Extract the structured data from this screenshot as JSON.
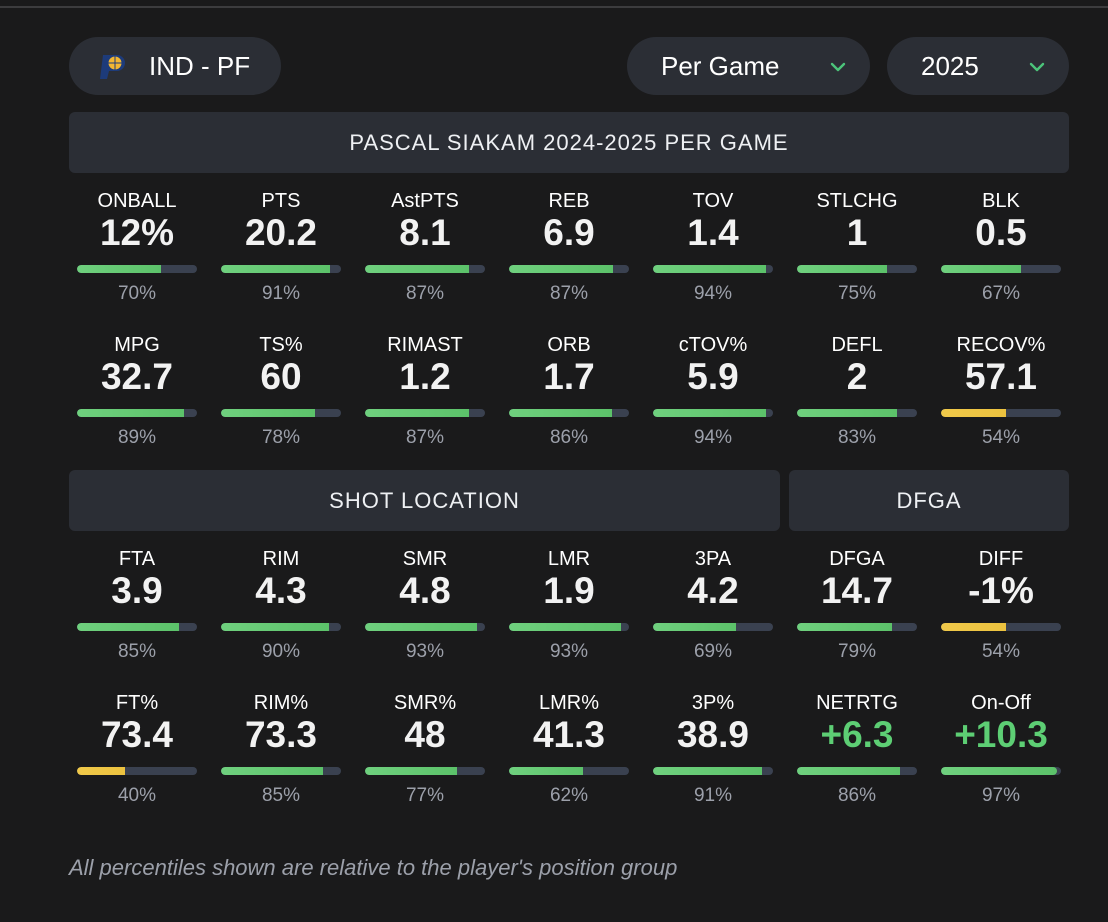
{
  "header": {
    "team_label": "IND - PF",
    "team_logo": "pacers-logo",
    "stat_mode": "Per Game",
    "season": "2025"
  },
  "sections": {
    "main_title": "PASCAL SIAKAM 2024-2025 PER GAME",
    "shot_location": "SHOT LOCATION",
    "dfga": "DFGA"
  },
  "colors": {
    "green": "#5cc26a",
    "yellow": "#ecc23f",
    "track": "#3a4150",
    "positive": "#5dce74"
  },
  "main_stats": [
    {
      "label": "ONBALL",
      "value": "12%",
      "pct": "70%",
      "p": 70,
      "color": "green"
    },
    {
      "label": "PTS",
      "value": "20.2",
      "pct": "91%",
      "p": 91,
      "color": "green"
    },
    {
      "label": "AstPTS",
      "value": "8.1",
      "pct": "87%",
      "p": 87,
      "color": "green"
    },
    {
      "label": "REB",
      "value": "6.9",
      "pct": "87%",
      "p": 87,
      "color": "green"
    },
    {
      "label": "TOV",
      "value": "1.4",
      "pct": "94%",
      "p": 94,
      "color": "green"
    },
    {
      "label": "STLCHG",
      "value": "1",
      "pct": "75%",
      "p": 75,
      "color": "green"
    },
    {
      "label": "BLK",
      "value": "0.5",
      "pct": "67%",
      "p": 67,
      "color": "green"
    },
    {
      "label": "MPG",
      "value": "32.7",
      "pct": "89%",
      "p": 89,
      "color": "green"
    },
    {
      "label": "TS%",
      "value": "60",
      "pct": "78%",
      "p": 78,
      "color": "green"
    },
    {
      "label": "RIMAST",
      "value": "1.2",
      "pct": "87%",
      "p": 87,
      "color": "green"
    },
    {
      "label": "ORB",
      "value": "1.7",
      "pct": "86%",
      "p": 86,
      "color": "green"
    },
    {
      "label": "cTOV%",
      "value": "5.9",
      "pct": "94%",
      "p": 94,
      "color": "green"
    },
    {
      "label": "DEFL",
      "value": "2",
      "pct": "83%",
      "p": 83,
      "color": "green"
    },
    {
      "label": "RECOV%",
      "value": "57.1",
      "pct": "54%",
      "p": 54,
      "color": "yellow"
    }
  ],
  "shot_stats": [
    {
      "label": "FTA",
      "value": "3.9",
      "pct": "85%",
      "p": 85,
      "color": "green"
    },
    {
      "label": "RIM",
      "value": "4.3",
      "pct": "90%",
      "p": 90,
      "color": "green"
    },
    {
      "label": "SMR",
      "value": "4.8",
      "pct": "93%",
      "p": 93,
      "color": "green"
    },
    {
      "label": "LMR",
      "value": "1.9",
      "pct": "93%",
      "p": 93,
      "color": "green"
    },
    {
      "label": "3PA",
      "value": "4.2",
      "pct": "69%",
      "p": 69,
      "color": "green"
    },
    {
      "label": "DFGA",
      "value": "14.7",
      "pct": "79%",
      "p": 79,
      "color": "green"
    },
    {
      "label": "DIFF",
      "value": "-1%",
      "pct": "54%",
      "p": 54,
      "color": "yellow"
    },
    {
      "label": "FT%",
      "value": "73.4",
      "pct": "40%",
      "p": 40,
      "color": "yellow"
    },
    {
      "label": "RIM%",
      "value": "73.3",
      "pct": "85%",
      "p": 85,
      "color": "green"
    },
    {
      "label": "SMR%",
      "value": "48",
      "pct": "77%",
      "p": 77,
      "color": "green"
    },
    {
      "label": "LMR%",
      "value": "41.3",
      "pct": "62%",
      "p": 62,
      "color": "green"
    },
    {
      "label": "3P%",
      "value": "38.9",
      "pct": "91%",
      "p": 91,
      "color": "green"
    },
    {
      "label": "NETRTG",
      "value": "+6.3",
      "pct": "86%",
      "p": 86,
      "color": "green",
      "positive": true
    },
    {
      "label": "On-Off",
      "value": "+10.3",
      "pct": "97%",
      "p": 97,
      "color": "green",
      "positive": true
    }
  ],
  "footer": "All percentiles shown are relative to the player's position group"
}
